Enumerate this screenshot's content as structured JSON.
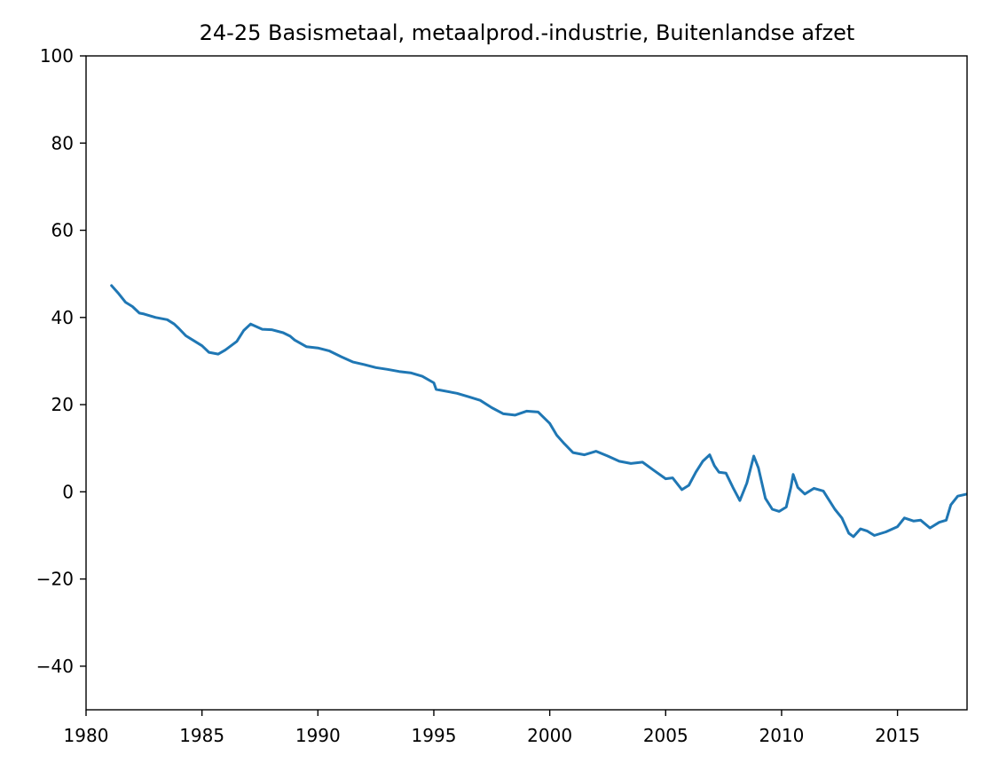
{
  "chart_data": {
    "type": "line",
    "title": "24-25 Basismetaal, metaalprod.-industrie, Buitenlandse afzet",
    "xlabel": "",
    "ylabel": "",
    "xlim": [
      1980,
      2018
    ],
    "ylim": [
      -50,
      100
    ],
    "x_ticks": [
      1980,
      1985,
      1990,
      1995,
      2000,
      2005,
      2010,
      2015
    ],
    "y_ticks": [
      -40,
      -20,
      0,
      20,
      40,
      60,
      80,
      100
    ],
    "grid": false,
    "legend": "none",
    "line_color": "#1f77b4",
    "series": [
      {
        "x": [
          1981.1,
          1981.4,
          1981.7,
          1982.0,
          1982.3,
          1982.5,
          1983.0,
          1983.5,
          1983.8,
          1984.0,
          1984.3,
          1984.7,
          1985.0,
          1985.3,
          1985.7,
          1986.0,
          1986.5,
          1986.8,
          1987.1,
          1987.6,
          1988.0,
          1988.5,
          1988.8,
          1989.0,
          1989.5,
          1990.0,
          1990.5,
          1991.0,
          1991.5,
          1992.0,
          1992.5,
          1993.0,
          1993.5,
          1994.0,
          1994.5,
          1995.0,
          1995.1,
          1996.0,
          1996.5,
          1997.0,
          1997.5,
          1998.0,
          1998.5,
          1999.0,
          1999.5,
          2000.0,
          2000.3,
          2000.6,
          2001.0,
          2001.5,
          2002.0,
          2002.5,
          2003.0,
          2003.5,
          2004.0,
          2004.5,
          2005.0,
          2005.3,
          2005.7,
          2006.0,
          2006.3,
          2006.6,
          2006.9,
          2007.1,
          2007.3,
          2007.6,
          2007.9,
          2008.2,
          2008.5,
          2008.8,
          2009.0,
          2009.3,
          2009.6,
          2009.9,
          2010.2,
          2010.4,
          2010.5,
          2010.7,
          2011.0,
          2011.4,
          2011.8,
          2012.0,
          2012.3,
          2012.6,
          2012.9,
          2013.1,
          2013.4,
          2013.7,
          2014.0,
          2014.5,
          2015.0,
          2015.3,
          2015.7,
          2016.0,
          2016.4,
          2016.8,
          2017.1,
          2017.3,
          2017.6,
          2018.0
        ],
        "values": [
          47.3,
          45.5,
          43.5,
          42.5,
          41.0,
          40.8,
          40.0,
          39.5,
          38.5,
          37.5,
          35.8,
          34.5,
          33.5,
          32.0,
          31.6,
          32.5,
          34.5,
          37.0,
          38.5,
          37.3,
          37.2,
          36.5,
          35.7,
          34.8,
          33.3,
          33.0,
          32.3,
          31.0,
          29.8,
          29.2,
          28.5,
          28.1,
          27.6,
          27.3,
          26.5,
          25.0,
          23.5,
          22.6,
          21.8,
          21.0,
          19.3,
          17.9,
          17.6,
          18.5,
          18.3,
          15.7,
          13.0,
          11.2,
          9.0,
          8.5,
          9.3,
          8.2,
          7.0,
          6.5,
          6.8,
          4.9,
          3.0,
          3.2,
          0.5,
          1.5,
          4.5,
          7.0,
          8.5,
          6.0,
          4.5,
          4.3,
          1.0,
          -2.0,
          2.0,
          8.2,
          5.5,
          -1.5,
          -4.0,
          -4.5,
          -3.5,
          1.0,
          4.0,
          1.0,
          -0.5,
          0.8,
          0.2,
          -1.5,
          -4.0,
          -6.0,
          -9.5,
          -10.3,
          -8.5,
          -9.0,
          -10.0,
          -9.2,
          -8.0,
          -6.0,
          -6.7,
          -6.5,
          -8.3,
          -7.0,
          -6.5,
          -3.0,
          -1.0,
          -0.5
        ]
      }
    ]
  }
}
